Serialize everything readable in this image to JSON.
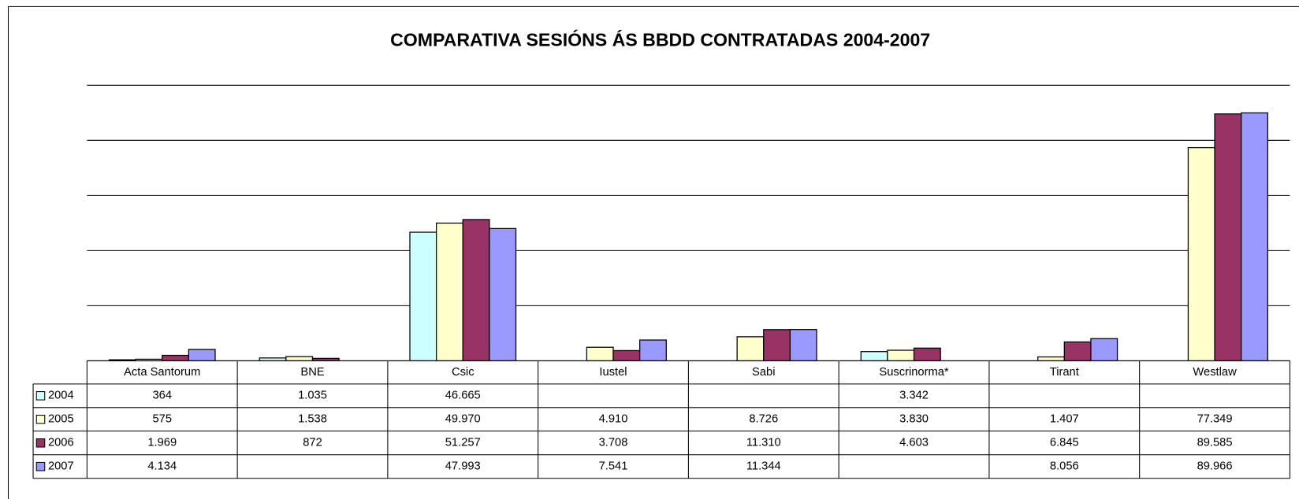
{
  "chart_data": {
    "type": "bar",
    "title": "COMPARATIVA SESIÓNS ÁS BBDD CONTRATADAS  2004-2007",
    "categories": [
      "Acta Santorum",
      "BNE",
      "Csic",
      "Iustel",
      "Sabi",
      "Suscrinorma*",
      "Tirant",
      "Westlaw"
    ],
    "series": [
      {
        "name": "2004",
        "color": "#ccffff",
        "values": [
          364,
          1035,
          46665,
          null,
          null,
          3342,
          null,
          null
        ],
        "value_labels": [
          "364",
          "1.035",
          "46.665",
          null,
          null,
          "3.342",
          null,
          null
        ]
      },
      {
        "name": "2005",
        "color": "#ffffcc",
        "values": [
          575,
          1538,
          49970,
          4910,
          8726,
          3830,
          1407,
          77349
        ],
        "value_labels": [
          "575",
          "1.538",
          "49.970",
          "4.910",
          "8.726",
          "3.830",
          "1.407",
          "77.349"
        ]
      },
      {
        "name": "2006",
        "color": "#993366",
        "values": [
          1969,
          872,
          51257,
          3708,
          11310,
          4603,
          6845,
          89585
        ],
        "value_labels": [
          "1.969",
          "872",
          "51.257",
          "3.708",
          "11.310",
          "4.603",
          "6.845",
          "89.585"
        ]
      },
      {
        "name": "2007",
        "color": "#9999ff",
        "values": [
          4134,
          null,
          47993,
          7541,
          11344,
          null,
          8056,
          89966
        ],
        "value_labels": [
          "4.134",
          null,
          "47.993",
          "7.541",
          "11.344",
          null,
          "8.056",
          "89.966"
        ]
      }
    ],
    "ylim": [
      0,
      100000
    ],
    "yticks": [
      0,
      20000,
      40000,
      60000,
      80000,
      100000
    ],
    "grid": true
  }
}
